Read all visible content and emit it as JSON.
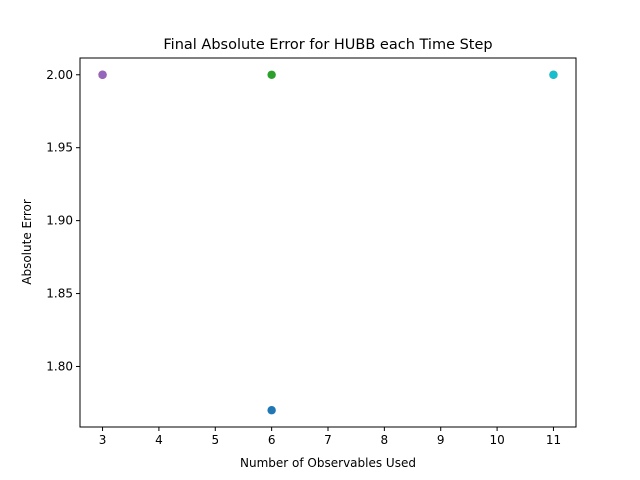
{
  "chart_data": {
    "type": "scatter",
    "title": "Final Absolute Error for HUBB each Time Step",
    "xlabel": "Number of Observables Used",
    "ylabel": "Absolute Error",
    "xlim": [
      2.6,
      11.4
    ],
    "ylim": [
      1.7585,
      2.0115
    ],
    "xticks": [
      3,
      4,
      5,
      6,
      7,
      8,
      9,
      10,
      11
    ],
    "yticks": [
      1.8,
      1.85,
      1.9,
      1.95,
      2.0
    ],
    "ytick_labels": [
      "1.80",
      "1.85",
      "1.90",
      "1.95",
      "2.00"
    ],
    "grid": false,
    "series": [
      {
        "x": 6,
        "y": 1.77,
        "color": "#1f77b4"
      },
      {
        "x": 11,
        "y": 2.0,
        "color": "#ff7f0e"
      },
      {
        "x": 6,
        "y": 2.0,
        "color": "#2ca02c"
      },
      {
        "x": 3,
        "y": 2.0,
        "color": "#d62728"
      },
      {
        "x": 3,
        "y": 2.0,
        "color": "#9467bd"
      },
      {
        "x": 11,
        "y": 2.0,
        "color": "#17becf"
      }
    ]
  }
}
